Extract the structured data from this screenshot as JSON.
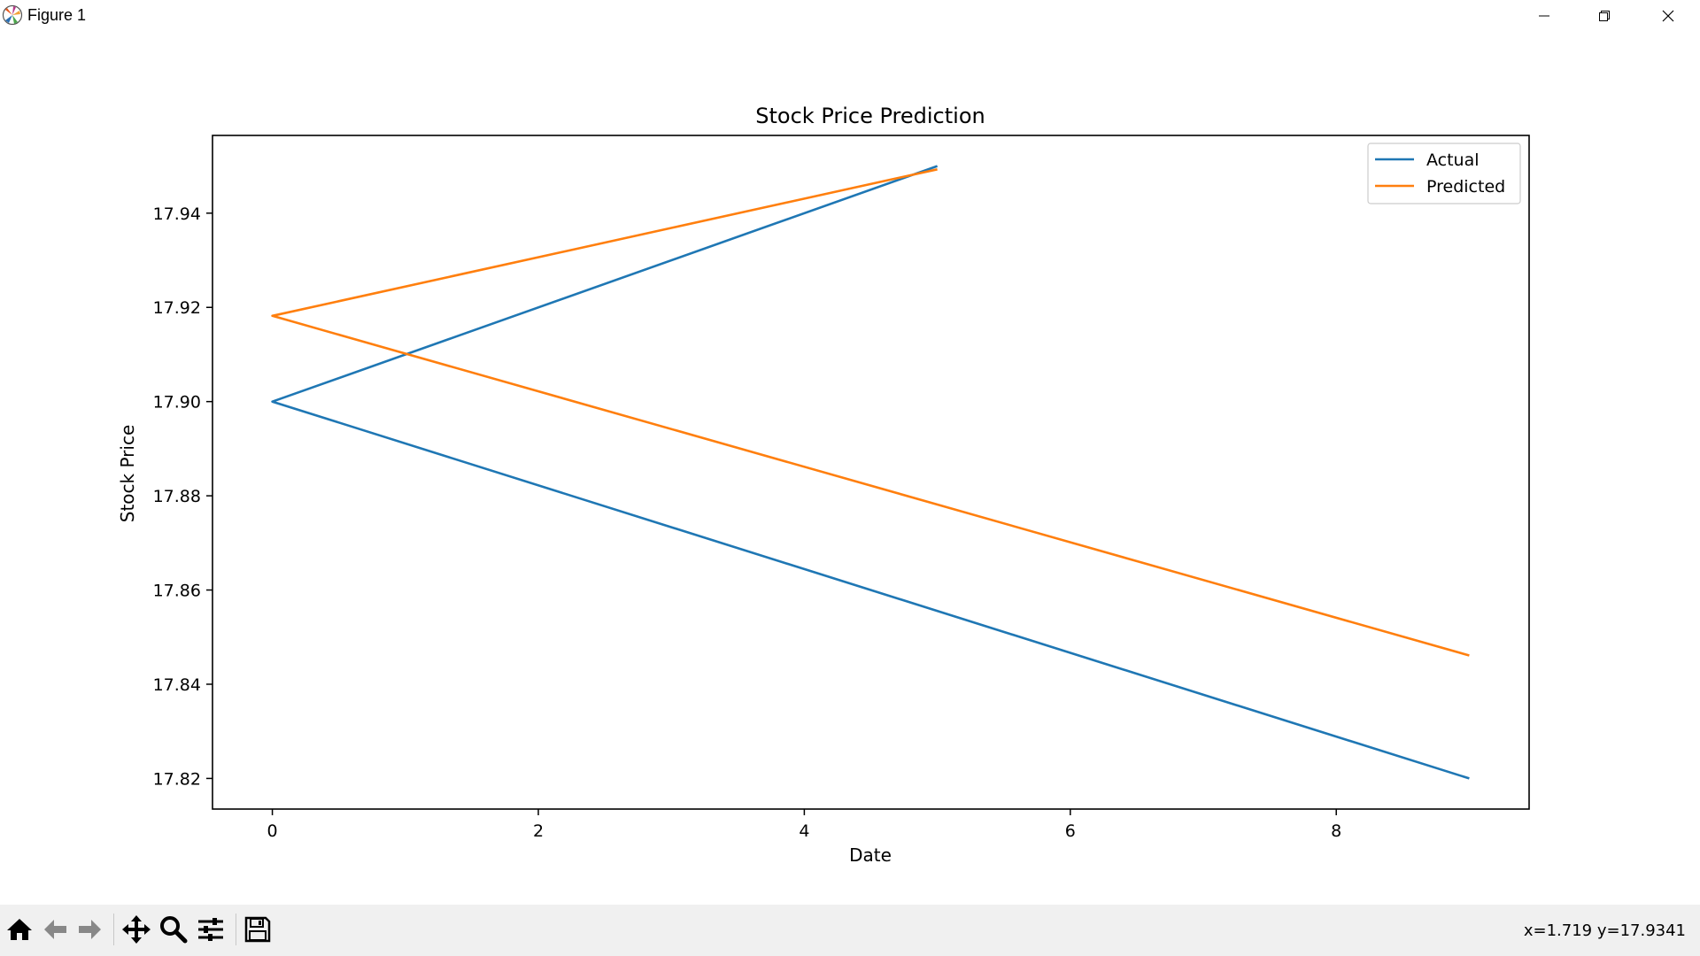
{
  "window": {
    "title": "Figure 1",
    "controls": [
      "minimize",
      "restore",
      "close"
    ]
  },
  "toolbar": {
    "buttons": [
      {
        "icon": "home-icon",
        "action": "Home"
      },
      {
        "icon": "back-arrow-icon",
        "action": "Back"
      },
      {
        "icon": "forward-arrow-icon",
        "action": "Forward"
      },
      {
        "icon": "pan-move-icon",
        "action": "Pan"
      },
      {
        "icon": "zoom-magnifier-icon",
        "action": "Zoom"
      },
      {
        "icon": "configure-subplots-icon",
        "action": "Subplots"
      },
      {
        "icon": "save-floppy-icon",
        "action": "Save"
      }
    ],
    "coords": "x=1.719 y=17.9341"
  },
  "chart_data": {
    "type": "line",
    "title": "Stock Price Prediction",
    "xlabel": "Date",
    "ylabel": "Stock Price",
    "xlim": [
      -0.45,
      9.45
    ],
    "ylim": [
      17.8135,
      17.9565
    ],
    "xticks": [
      0,
      2,
      4,
      6,
      8
    ],
    "yticks": [
      17.82,
      17.84,
      17.86,
      17.88,
      17.9,
      17.92,
      17.94
    ],
    "xtick_labels": [
      "0",
      "2",
      "4",
      "6",
      "8"
    ],
    "ytick_labels": [
      "17.82",
      "17.84",
      "17.86",
      "17.88",
      "17.90",
      "17.92",
      "17.94"
    ],
    "grid": false,
    "legend_position": "top-right",
    "series": [
      {
        "name": "Actual",
        "color": "#1f77b4",
        "x": [
          5,
          0,
          9
        ],
        "y": [
          17.95,
          17.9,
          17.82
        ]
      },
      {
        "name": "Predicted",
        "color": "#ff7f0e",
        "x": [
          5,
          0,
          9
        ],
        "y": [
          17.9493,
          17.9182,
          17.8461
        ]
      }
    ]
  }
}
